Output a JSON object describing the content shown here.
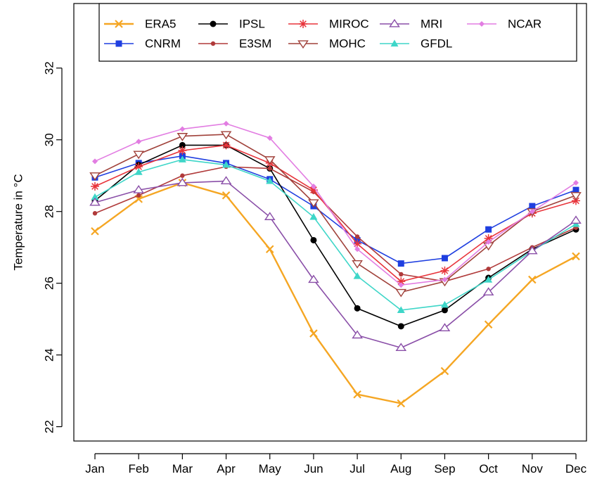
{
  "chart_data": {
    "type": "line",
    "title": "",
    "xlabel": "",
    "ylabel": "Temperature in °C",
    "categories": [
      "Jan",
      "Feb",
      "Mar",
      "Apr",
      "May",
      "Jun",
      "Jul",
      "Aug",
      "Sep",
      "Oct",
      "Nov",
      "Dec"
    ],
    "ylim": [
      21.6,
      33.8
    ],
    "yticks": [
      22,
      24,
      26,
      28,
      30,
      32
    ],
    "grid": false,
    "legend_position": "top",
    "series": [
      {
        "name": "ERA5",
        "color": "#F5A623",
        "marker": "x",
        "values": [
          27.45,
          28.35,
          28.8,
          28.45,
          26.95,
          24.6,
          22.9,
          22.65,
          23.55,
          24.85,
          26.1,
          26.75
        ]
      },
      {
        "name": "CNRM",
        "color": "#1F3FE0",
        "marker": "square",
        "values": [
          28.95,
          29.35,
          29.55,
          29.35,
          28.9,
          28.15,
          27.2,
          26.55,
          26.7,
          27.5,
          28.15,
          28.6
        ]
      },
      {
        "name": "IPSL",
        "color": "#000000",
        "marker": "circle",
        "values": [
          28.3,
          29.3,
          29.85,
          29.85,
          29.2,
          27.2,
          25.3,
          24.8,
          25.25,
          26.15,
          26.95,
          27.5
        ]
      },
      {
        "name": "E3SM",
        "color": "#B03A3A",
        "marker": "dot",
        "values": [
          27.95,
          28.45,
          29.0,
          29.25,
          29.2,
          28.55,
          27.3,
          26.25,
          26.05,
          26.4,
          27.0,
          27.55
        ]
      },
      {
        "name": "MIROC",
        "color": "#E8343B",
        "marker": "star",
        "values": [
          28.7,
          29.25,
          29.7,
          29.85,
          29.35,
          28.6,
          27.1,
          26.05,
          26.35,
          27.25,
          27.95,
          28.3
        ]
      },
      {
        "name": "MOHC",
        "color": "#A0413A",
        "marker": "triangle-down",
        "values": [
          29.0,
          29.6,
          30.1,
          30.15,
          29.45,
          28.25,
          26.55,
          25.75,
          26.05,
          27.05,
          28.0,
          28.45
        ]
      },
      {
        "name": "GFDL",
        "color": "#3ED6C8",
        "marker": "triangle",
        "values": [
          28.4,
          29.1,
          29.45,
          29.3,
          28.85,
          27.85,
          26.2,
          25.25,
          25.4,
          26.1,
          26.9,
          27.65
        ]
      },
      {
        "name": "MRI",
        "color": "#8A4FA8",
        "marker": "triangle-open",
        "values": [
          28.25,
          28.6,
          28.8,
          28.85,
          27.85,
          26.1,
          24.55,
          24.2,
          24.75,
          25.75,
          26.9,
          27.75
        ]
      },
      {
        "name": "NCAR",
        "color": "#E27DE2",
        "marker": "diamond",
        "values": [
          29.4,
          29.95,
          30.3,
          30.45,
          30.05,
          28.7,
          26.95,
          25.95,
          26.1,
          27.15,
          28.0,
          28.8
        ]
      }
    ]
  }
}
